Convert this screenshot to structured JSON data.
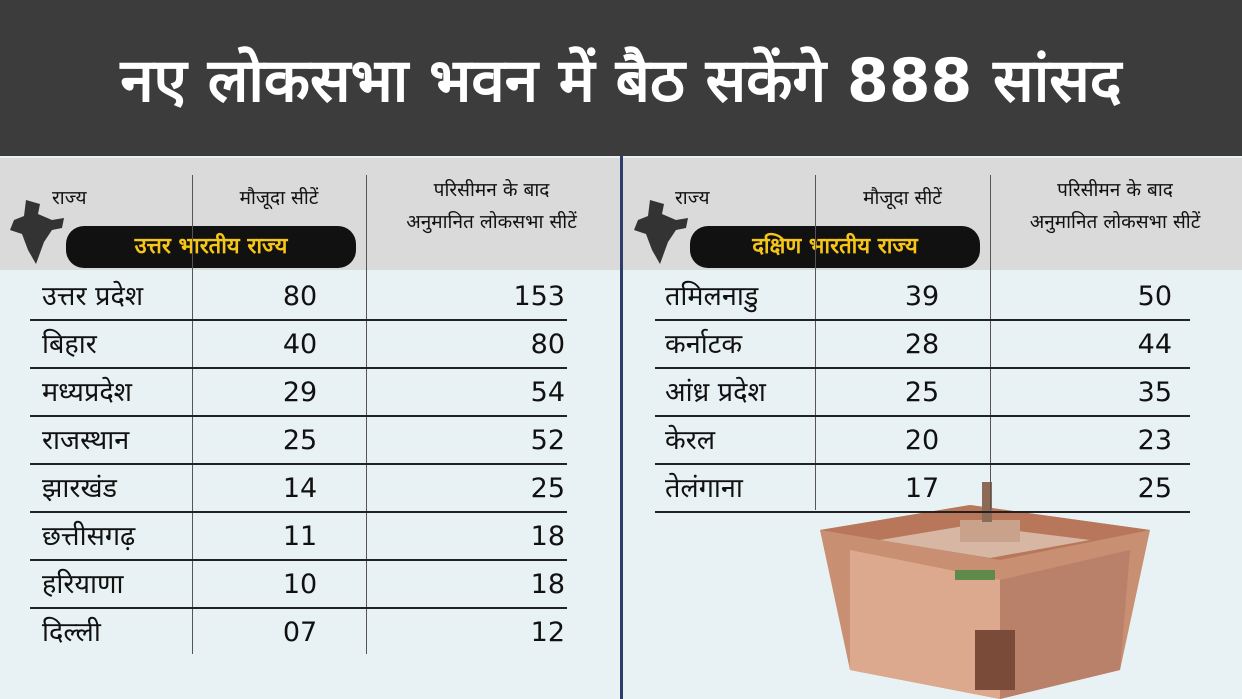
{
  "title": "नए लोकसभा भवन में बैठ सकेंगे 888 सांसद",
  "panels": [
    {
      "headers": {
        "state": "राज्य",
        "current": "मौजूदा सीटें",
        "after": [
          "परिसीमन के बाद",
          "अनुमानित लोकसभा सीटें"
        ]
      },
      "badge": "उत्तर भारतीय राज्य",
      "rows": [
        [
          "उत्तर प्रदेश",
          "80",
          "153"
        ],
        [
          "बिहार",
          "40",
          "80"
        ],
        [
          "मध्यप्रदेश",
          "29",
          "54"
        ],
        [
          "राजस्थान",
          "25",
          "52"
        ],
        [
          "झारखंड",
          "14",
          "25"
        ],
        [
          "छत्तीसगढ़",
          "11",
          "18"
        ],
        [
          "हरियाणा",
          "10",
          "18"
        ],
        [
          "दिल्ली",
          "07",
          "12"
        ]
      ]
    },
    {
      "headers": {
        "state": "राज्य",
        "current": "मौजूदा सीटें",
        "after": [
          "परिसीमन के बाद",
          "अनुमानित लोकसभा सीटें"
        ]
      },
      "badge": "दक्षिण भारतीय राज्य",
      "rows": [
        [
          "तमिलनाडु",
          "39",
          "50"
        ],
        [
          "कर्नाटक",
          "28",
          "44"
        ],
        [
          "आंध्र प्रदेश",
          "25",
          "35"
        ],
        [
          "केरल",
          "20",
          "23"
        ],
        [
          "तेलंगाना",
          "17",
          "25"
        ]
      ]
    }
  ]
}
